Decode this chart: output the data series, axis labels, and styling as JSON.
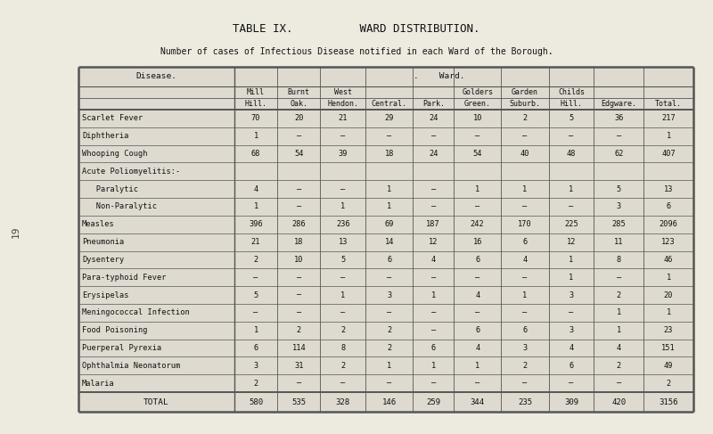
{
  "title": "TABLE IX.          WARD DISTRIBUTION.",
  "subtitle": "Number of cases of Infectious Disease notified in each Ward of the Borough.",
  "bg_color": "#edeae0",
  "table_fill": "#dedad0",
  "col_headers_row1": [
    "Mill",
    "Burnt",
    "West",
    "",
    "",
    "Golders",
    "Garden",
    "Childs",
    "",
    ""
  ],
  "col_headers_row2": [
    "Hill.",
    "Oak.",
    "Hendon.",
    "Central.",
    "Park.",
    "Green.",
    "Suburb.",
    "Hill.",
    "Edgware.",
    "Total."
  ],
  "ward_header": ".    Ward.",
  "disease_col": "Disease.",
  "rows": [
    {
      "disease": "Scarlet Fever",
      "vals": [
        "70",
        "20",
        "21",
        "29",
        "24",
        "10",
        "2",
        "5",
        "36",
        "217"
      ]
    },
    {
      "disease": "Diphtheria",
      "vals": [
        "1",
        "—",
        "—",
        "—",
        "—",
        "—",
        "—",
        "—",
        "—",
        "1"
      ]
    },
    {
      "disease": "Whooping Cough",
      "vals": [
        "68",
        "54",
        "39",
        "18",
        "24",
        "54",
        "40",
        "48",
        "62",
        "407"
      ]
    },
    {
      "disease": "Acute Poliomyelitis:-",
      "vals": [
        "",
        "",
        "",
        "",
        "",
        "",
        "",
        "",
        "",
        ""
      ]
    },
    {
      "disease": "   Paralytic",
      "vals": [
        "4",
        "—",
        "—",
        "1",
        "—",
        "1",
        "1",
        "1",
        "5",
        "13"
      ]
    },
    {
      "disease": "   Non-Paralytic",
      "vals": [
        "1",
        "—",
        "1",
        "1",
        "—",
        "—",
        "—",
        "—",
        "3",
        "6"
      ]
    },
    {
      "disease": "Measles",
      "vals": [
        "396",
        "286",
        "236",
        "69",
        "187",
        "242",
        "170",
        "225",
        "285",
        "2096"
      ]
    },
    {
      "disease": "Pneumonia",
      "vals": [
        "21",
        "18",
        "13",
        "14",
        "12",
        "16",
        "6",
        "12",
        "11",
        "123"
      ]
    },
    {
      "disease": "Dysentery",
      "vals": [
        "2",
        "10",
        "5",
        "6",
        "4",
        "6",
        "4",
        "1",
        "8",
        "46"
      ]
    },
    {
      "disease": "Para-typhoid Fever",
      "vals": [
        "—",
        "—",
        "—",
        "—",
        "—",
        "—",
        "—",
        "1",
        "—",
        "1"
      ]
    },
    {
      "disease": "Erysipelas",
      "vals": [
        "5",
        "—",
        "1",
        "3",
        "1",
        "4",
        "1",
        "3",
        "2",
        "20"
      ]
    },
    {
      "disease": "Meningococcal Infection",
      "vals": [
        "—",
        "—",
        "—",
        "—",
        "—",
        "—",
        "—",
        "—",
        "1",
        "1"
      ]
    },
    {
      "disease": "Food Poisoning",
      "vals": [
        "1",
        "2",
        "2",
        "2",
        "—",
        "6",
        "6",
        "3",
        "1",
        "23"
      ]
    },
    {
      "disease": "Puerperal Pyrexia",
      "vals": [
        "6",
        "114",
        "8",
        "2",
        "6",
        "4",
        "3",
        "4",
        "4",
        "151"
      ]
    },
    {
      "disease": "Ophthalmia Neonatorum",
      "vals": [
        "3",
        "31",
        "2",
        "1",
        "1",
        "1",
        "2",
        "6",
        "2",
        "49"
      ]
    },
    {
      "disease": "Malaria",
      "vals": [
        "2",
        "—",
        "—",
        "—",
        "—",
        "—",
        "—",
        "—",
        "—",
        "2"
      ]
    }
  ],
  "total_row": {
    "disease": "TOTAL",
    "vals": [
      "580",
      "535",
      "328",
      "146",
      "259",
      "344",
      "235",
      "309",
      "420",
      "3156"
    ]
  },
  "page_num": "19"
}
